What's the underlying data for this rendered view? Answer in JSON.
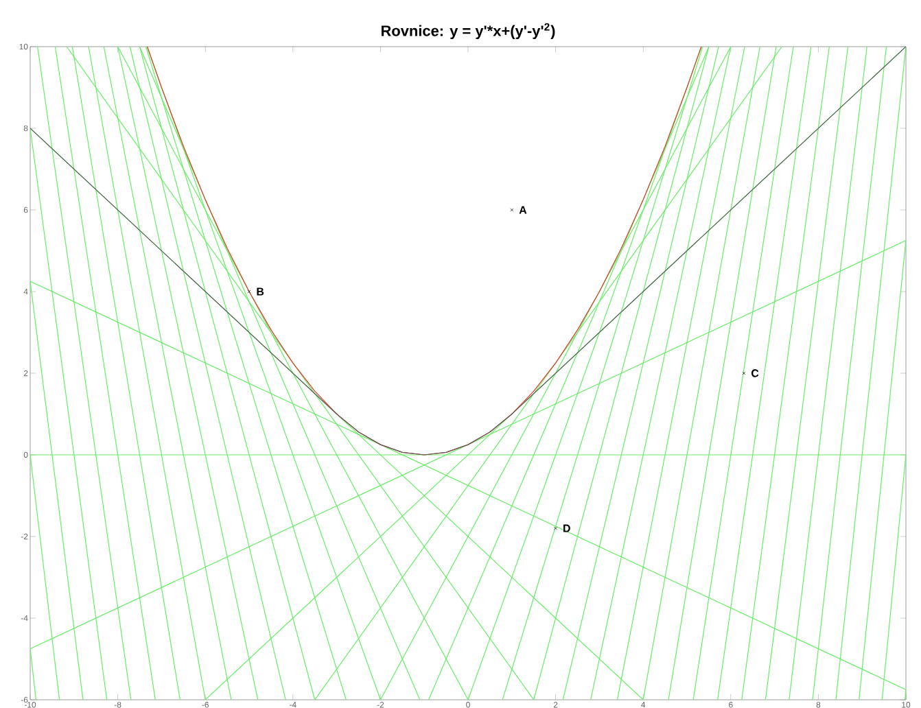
{
  "chart_data": {
    "type": "line",
    "title": "Rovnice:    y = y'*x+(y'-y'$^{2}$)",
    "xlim": [
      -10,
      10
    ],
    "ylim": [
      -6,
      10
    ],
    "xticks": [
      -10,
      -8,
      -6,
      -4,
      -2,
      0,
      2,
      4,
      6,
      8,
      10
    ],
    "yticks": [
      -6,
      -4,
      -2,
      0,
      2,
      4,
      6,
      8,
      10
    ],
    "series": [
      {
        "color": "#66ee66",
        "x": [
          -10,
          -9.868
        ],
        "values": [
          -4.75,
          -6
        ]
      },
      {
        "color": "#66ee66",
        "x": [
          -10,
          -9.333
        ],
        "values": [
          0,
          -6
        ]
      },
      {
        "color": "#66ee66",
        "x": [
          -10,
          -8.794
        ],
        "values": [
          4.25,
          -6
        ]
      },
      {
        "color": "#66ee66",
        "x": [
          -10,
          -8.25
        ],
        "values": [
          8,
          -6
        ]
      },
      {
        "color": "#66ee66",
        "x": [
          -9.833,
          -7.7
        ],
        "values": [
          10,
          -6
        ]
      },
      {
        "color": "#66ee66",
        "x": [
          -9.429,
          -7.143
        ],
        "values": [
          10,
          -6
        ]
      },
      {
        "color": "#66ee66",
        "x": [
          -9.038,
          -6.577
        ],
        "values": [
          10,
          -6
        ]
      },
      {
        "color": "#66ee66",
        "x": [
          -8.667,
          -6
        ],
        "values": [
          10,
          -6
        ]
      },
      {
        "color": "#66ee66",
        "x": [
          -8.318,
          -5.409
        ],
        "values": [
          10,
          -6
        ]
      },
      {
        "color": "#66ee66",
        "x": [
          -8,
          -4.8
        ],
        "values": [
          10,
          -6
        ]
      },
      {
        "color": "#66ee66",
        "x": [
          -7.722,
          -4.167
        ],
        "values": [
          10,
          -6
        ]
      },
      {
        "color": "#66ee66",
        "x": [
          -7.5,
          -3.5
        ],
        "values": [
          10,
          -6
        ]
      },
      {
        "color": "#66ee66",
        "x": [
          -7.357,
          -2.786
        ],
        "values": [
          10,
          -6
        ]
      },
      {
        "color": "#66ee66",
        "x": [
          -7.333,
          -2
        ],
        "values": [
          10,
          -6
        ]
      },
      {
        "color": "#66ee66",
        "x": [
          -7.5,
          -1.1
        ],
        "values": [
          10,
          -6
        ]
      },
      {
        "color": "#66ee66",
        "x": [
          -8,
          0
        ],
        "values": [
          10,
          -6
        ]
      },
      {
        "color": "#66ee66",
        "x": [
          -9.167,
          1.5
        ],
        "values": [
          10,
          -6
        ]
      },
      {
        "color": "#66ee66",
        "x": [
          -10,
          4
        ],
        "values": [
          8,
          -6
        ]
      },
      {
        "color": "#66ee66",
        "x": [
          -10,
          10
        ],
        "values": [
          4.25,
          -5.75
        ]
      },
      {
        "color": "#66ee66",
        "x": [
          -10,
          10
        ],
        "values": [
          0,
          0
        ]
      },
      {
        "color": "#66ee66",
        "x": [
          -10,
          10
        ],
        "values": [
          -4.75,
          5.25
        ]
      },
      {
        "color": "#66ee66",
        "x": [
          -6,
          10
        ],
        "values": [
          -6,
          10
        ]
      },
      {
        "color": "#66ee66",
        "x": [
          -3.5,
          7.167
        ],
        "values": [
          -6,
          10
        ]
      },
      {
        "color": "#66ee66",
        "x": [
          -2,
          6
        ],
        "values": [
          -6,
          10
        ]
      },
      {
        "color": "#66ee66",
        "x": [
          -0.9,
          5.5
        ],
        "values": [
          -6,
          10
        ]
      },
      {
        "color": "#66ee66",
        "x": [
          0,
          5.333
        ],
        "values": [
          -6,
          10
        ]
      },
      {
        "color": "#66ee66",
        "x": [
          0.786,
          5.357
        ],
        "values": [
          -6,
          10
        ]
      },
      {
        "color": "#66ee66",
        "x": [
          1.5,
          5.5
        ],
        "values": [
          -6,
          10
        ]
      },
      {
        "color": "#66ee66",
        "x": [
          2.167,
          5.722
        ],
        "values": [
          -6,
          10
        ]
      },
      {
        "color": "#66ee66",
        "x": [
          2.8,
          6
        ],
        "values": [
          -6,
          10
        ]
      },
      {
        "color": "#66ee66",
        "x": [
          3.409,
          6.318
        ],
        "values": [
          -6,
          10
        ]
      },
      {
        "color": "#66ee66",
        "x": [
          4,
          6.667
        ],
        "values": [
          -6,
          10
        ]
      },
      {
        "color": "#66ee66",
        "x": [
          4.577,
          7.038
        ],
        "values": [
          -6,
          10
        ]
      },
      {
        "color": "#66ee66",
        "x": [
          5.143,
          7.429
        ],
        "values": [
          -6,
          10
        ]
      },
      {
        "color": "#66ee66",
        "x": [
          5.7,
          7.833
        ],
        "values": [
          -6,
          10
        ]
      },
      {
        "color": "#66ee66",
        "x": [
          6.25,
          8.25
        ],
        "values": [
          -6,
          10
        ]
      },
      {
        "color": "#66ee66",
        "x": [
          6.794,
          8.676
        ],
        "values": [
          -6,
          10
        ]
      },
      {
        "color": "#66ee66",
        "x": [
          7.333,
          9.111
        ],
        "values": [
          -6,
          10
        ]
      },
      {
        "color": "#66ee66",
        "x": [
          7.868,
          9.553
        ],
        "values": [
          -6,
          10
        ]
      },
      {
        "color": "#66ee66",
        "x": [
          8.4,
          10
        ],
        "values": [
          -6,
          10
        ]
      },
      {
        "color": "#66ee66",
        "x": [
          8.929,
          10
        ],
        "values": [
          -6,
          5.25
        ]
      },
      {
        "color": "#66ee66",
        "x": [
          9.455,
          10
        ],
        "values": [
          -6,
          0
        ]
      },
      {
        "color": "#66ee66",
        "x": [
          9.978,
          10
        ],
        "values": [
          -6,
          -5.75
        ]
      },
      {
        "color": "#e03a2a",
        "x": [
          -7.325,
          -7,
          -6.5,
          -6,
          -5.5,
          -5,
          -4.5,
          -4,
          -3.5,
          -3,
          -2.5,
          -2,
          -1.5,
          -1,
          -0.5,
          0,
          0.5,
          1,
          1.5,
          2,
          2.5,
          3,
          3.5,
          4,
          4.5,
          5,
          5.325
        ],
        "values": [
          10,
          9,
          7.56,
          6.25,
          5.06,
          4,
          3.06,
          2.25,
          1.56,
          1,
          0.56,
          0.25,
          0.06,
          0,
          0.06,
          0.25,
          0.56,
          1,
          1.56,
          2.25,
          3.06,
          4,
          5.06,
          6.25,
          7.56,
          9,
          10
        ]
      },
      {
        "color": "#606060",
        "x": [
          -10,
          -3,
          -2.5,
          -2,
          -1.5,
          -1,
          -0.5,
          0,
          0.5,
          1,
          10
        ],
        "values": [
          8,
          1,
          0.56,
          0.25,
          0.06,
          0,
          0.06,
          0.25,
          0.56,
          1,
          10
        ]
      },
      {
        "type": "scatter",
        "marker": "cross",
        "color": "#222222",
        "x": [
          1,
          -5,
          6.3,
          2
        ],
        "values": [
          6,
          4,
          2,
          -1.8
        ]
      }
    ],
    "annotations": [
      {
        "text": "A",
        "x": 1,
        "y": 6
      },
      {
        "text": "B",
        "x": -5,
        "y": 4
      },
      {
        "text": "C",
        "x": 6.3,
        "y": 2
      },
      {
        "text": "D",
        "x": 2,
        "y": -1.8
      }
    ]
  }
}
